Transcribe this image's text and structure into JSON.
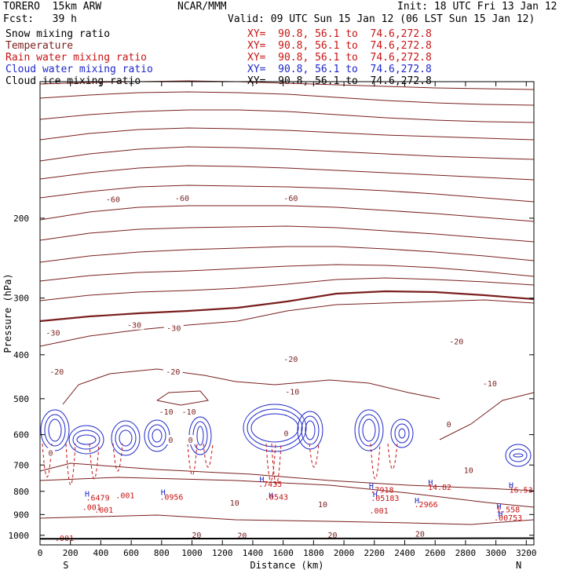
{
  "header": {
    "model": "TORERO  15km ARW",
    "org": "NCAR/MMM",
    "init": "Init: 18 UTC Fri 13 Jan 12",
    "fcst": "Fcst:   39 h",
    "valid": "Valid: 09 UTC Sun 15 Jan 12 (06 LST Sun 15 Jan 12)"
  },
  "legend": [
    {
      "name": "Snow mixing ratio",
      "xy": "XY=  90.8, 56.1 to  74.6,272.8",
      "color": "#000000"
    },
    {
      "name": "Temperature",
      "xy": "XY=  90.8, 56.1 to  74.6,272.8",
      "color": "#7a1e1e"
    },
    {
      "name": "Rain water mixing ratio",
      "xy": "XY=  90.8, 56.1 to  74.6,272.8",
      "color": "#c81414"
    },
    {
      "name": "Cloud water mixing ratio",
      "xy": "XY=  90.8, 56.1 to  74.6,272.8",
      "color": "#1e28c8"
    },
    {
      "name": "Cloud ice mixing ratio",
      "xy": "XY=  90.8, 56.1 to  74.6,272.8",
      "color": "#000000"
    }
  ],
  "chart_data": {
    "type": "line",
    "xlabel": "Distance (km)",
    "ylabel": "Pressure (hPa)",
    "xlim": [
      0,
      3250
    ],
    "ylim": [
      100,
      1050
    ],
    "yscale": "log",
    "x_ticks": [
      0,
      200,
      400,
      600,
      800,
      1000,
      1200,
      1400,
      1600,
      1800,
      2000,
      2200,
      2400,
      2600,
      2800,
      3000,
      3200
    ],
    "y_ticks": [
      200,
      300,
      400,
      500,
      600,
      700,
      800,
      900,
      1000
    ],
    "x_end_labels": {
      "left": "S",
      "right": "N"
    },
    "grid": false,
    "temperature_isotherm_labels": [
      {
        "x": 480,
        "p": 182,
        "label": "-60"
      },
      {
        "x": 935,
        "p": 181,
        "label": "-60"
      },
      {
        "x": 1650,
        "p": 181,
        "label": "-60"
      },
      {
        "x": 85,
        "p": 359,
        "label": "-30"
      },
      {
        "x": 620,
        "p": 345,
        "label": "-30"
      },
      {
        "x": 880,
        "p": 350,
        "label": "-30"
      },
      {
        "x": 2740,
        "p": 375,
        "label": "-20"
      },
      {
        "x": 1650,
        "p": 410,
        "label": "-20"
      },
      {
        "x": 875,
        "p": 437,
        "label": "-20"
      },
      {
        "x": 110,
        "p": 437,
        "label": "-20"
      },
      {
        "x": 1660,
        "p": 484,
        "label": "-10"
      },
      {
        "x": 2960,
        "p": 464,
        "label": "-10"
      },
      {
        "x": 830,
        "p": 535,
        "label": "-10"
      },
      {
        "x": 980,
        "p": 535,
        "label": "-10"
      },
      {
        "x": 2690,
        "p": 571,
        "label": "0"
      },
      {
        "x": 1620,
        "p": 598,
        "label": "0"
      },
      {
        "x": 860,
        "p": 618,
        "label": "0"
      },
      {
        "x": 990,
        "p": 618,
        "label": "0"
      },
      {
        "x": 70,
        "p": 660,
        "label": "0"
      },
      {
        "x": 2820,
        "p": 720,
        "label": "10"
      },
      {
        "x": 1280,
        "p": 850,
        "label": "10"
      },
      {
        "x": 1860,
        "p": 857,
        "label": "10"
      },
      {
        "x": 1030,
        "p": 1000,
        "label": "20"
      },
      {
        "x": 1330,
        "p": 1003,
        "label": "20"
      },
      {
        "x": 1925,
        "p": 1001,
        "label": "20"
      },
      {
        "x": 2500,
        "p": 995,
        "label": "20"
      }
    ],
    "cloud_labels": [
      {
        "x": 310,
        "p": 822,
        "label": "H"
      },
      {
        "x": 380,
        "p": 838,
        "label": ".6479"
      },
      {
        "x": 560,
        "p": 828,
        "label": ".001"
      },
      {
        "x": 340,
        "p": 880,
        "label": ".001"
      },
      {
        "x": 420,
        "p": 892,
        "label": ".001"
      },
      {
        "x": 810,
        "p": 815,
        "label": "H"
      },
      {
        "x": 865,
        "p": 835,
        "label": ".0956"
      },
      {
        "x": 1460,
        "p": 764,
        "label": "H"
      },
      {
        "x": 1515,
        "p": 782,
        "label": ".7435"
      },
      {
        "x": 1520,
        "p": 828,
        "label": "H"
      },
      {
        "x": 1555,
        "p": 835,
        "label": ".0543"
      },
      {
        "x": 2180,
        "p": 790,
        "label": "H"
      },
      {
        "x": 2250,
        "p": 806,
        "label": ".7918"
      },
      {
        "x": 2205,
        "p": 824,
        "label": "H"
      },
      {
        "x": 2270,
        "p": 840,
        "label": ".05183"
      },
      {
        "x": 2230,
        "p": 895,
        "label": ".001"
      },
      {
        "x": 2570,
        "p": 775,
        "label": "H"
      },
      {
        "x": 2630,
        "p": 794,
        "label": "14.82"
      },
      {
        "x": 2480,
        "p": 850,
        "label": "H"
      },
      {
        "x": 2540,
        "p": 868,
        "label": ".2966"
      },
      {
        "x": 3100,
        "p": 786,
        "label": "H"
      },
      {
        "x": 3165,
        "p": 805,
        "label": "16.53"
      },
      {
        "x": 3020,
        "p": 875,
        "label": "H"
      },
      {
        "x": 3080,
        "p": 890,
        "label": "1.558"
      },
      {
        "x": 3030,
        "p": 910,
        "label": "H"
      },
      {
        "x": 3080,
        "p": 928,
        "label": ".00753"
      },
      {
        "x": 160,
        "p": 1030,
        "label": ".001"
      }
    ]
  }
}
